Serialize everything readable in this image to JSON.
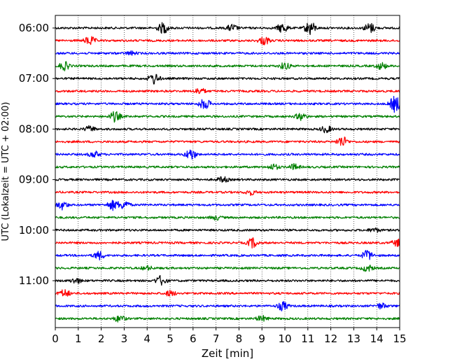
{
  "chart_data": {
    "type": "line",
    "title": "",
    "xlabel": "Zeit  [min]",
    "ylabel": "UTC (Lokalzeit = UTC + 02:00)",
    "xlim": [
      0,
      15
    ],
    "x_ticks": [
      "0",
      "1",
      "2",
      "3",
      "4",
      "5",
      "6",
      "7",
      "8",
      "9",
      "10",
      "11",
      "12",
      "13",
      "14",
      "15"
    ],
    "y_ticks": [
      "06:00",
      "07:00",
      "08:00",
      "09:00",
      "10:00",
      "11:00"
    ],
    "grid": "vertical dotted at every minute",
    "legend": "none",
    "trace_interval_minutes": 15,
    "trace_colors": [
      "#000000",
      "#ff0000",
      "#0000ff",
      "#008000"
    ],
    "traces": [
      {
        "start": "06:00",
        "color": "#000000",
        "bursts": [
          {
            "t": 4.7,
            "a": 1.6
          },
          {
            "t": 7.7,
            "a": 1.0
          },
          {
            "t": 9.9,
            "a": 1.4
          },
          {
            "t": 11.1,
            "a": 2.0
          },
          {
            "t": 13.7,
            "a": 1.5
          }
        ]
      },
      {
        "start": "06:15",
        "color": "#ff0000",
        "bursts": [
          {
            "t": 1.5,
            "a": 1.3
          },
          {
            "t": 9.1,
            "a": 1.2
          }
        ]
      },
      {
        "start": "06:30",
        "color": "#0000ff",
        "bursts": [
          {
            "t": 3.3,
            "a": 0.5
          }
        ]
      },
      {
        "start": "06:45",
        "color": "#008000",
        "bursts": [
          {
            "t": 0.4,
            "a": 1.2
          },
          {
            "t": 10.0,
            "a": 1.0
          },
          {
            "t": 14.2,
            "a": 1.0
          }
        ]
      },
      {
        "start": "07:00",
        "color": "#000000",
        "bursts": [
          {
            "t": 4.3,
            "a": 1.6
          }
        ]
      },
      {
        "start": "07:15",
        "color": "#ff0000",
        "bursts": [
          {
            "t": 6.3,
            "a": 0.9
          }
        ]
      },
      {
        "start": "07:30",
        "color": "#0000ff",
        "bursts": [
          {
            "t": 6.5,
            "a": 1.6
          },
          {
            "t": 14.8,
            "a": 2.4
          }
        ]
      },
      {
        "start": "07:45",
        "color": "#008000",
        "bursts": [
          {
            "t": 2.6,
            "a": 1.5
          },
          {
            "t": 10.7,
            "a": 1.0
          }
        ]
      },
      {
        "start": "08:00",
        "color": "#000000",
        "bursts": [
          {
            "t": 1.5,
            "a": 0.8
          },
          {
            "t": 11.8,
            "a": 1.0
          }
        ]
      },
      {
        "start": "08:15",
        "color": "#ff0000",
        "bursts": [
          {
            "t": 12.5,
            "a": 1.6
          }
        ]
      },
      {
        "start": "08:30",
        "color": "#0000ff",
        "bursts": [
          {
            "t": 1.7,
            "a": 0.9
          },
          {
            "t": 5.9,
            "a": 1.6
          }
        ]
      },
      {
        "start": "08:45",
        "color": "#008000",
        "bursts": [
          {
            "t": 9.5,
            "a": 0.8
          },
          {
            "t": 10.4,
            "a": 0.8
          }
        ]
      },
      {
        "start": "09:00",
        "color": "#000000",
        "bursts": [
          {
            "t": 7.3,
            "a": 0.8
          }
        ]
      },
      {
        "start": "09:15",
        "color": "#ff0000",
        "bursts": [
          {
            "t": 8.5,
            "a": 0.7
          }
        ]
      },
      {
        "start": "09:30",
        "color": "#0000ff",
        "bursts": [
          {
            "t": 0.3,
            "a": 1.2
          },
          {
            "t": 2.5,
            "a": 1.4
          },
          {
            "t": 3.0,
            "a": 1.3
          }
        ]
      },
      {
        "start": "09:45",
        "color": "#008000",
        "bursts": [
          {
            "t": 7.0,
            "a": 0.6
          }
        ]
      },
      {
        "start": "10:00",
        "color": "#000000",
        "bursts": [
          {
            "t": 13.9,
            "a": 0.6
          }
        ]
      },
      {
        "start": "10:15",
        "color": "#ff0000",
        "bursts": [
          {
            "t": 8.6,
            "a": 1.4
          },
          {
            "t": 14.9,
            "a": 1.0
          }
        ]
      },
      {
        "start": "10:30",
        "color": "#0000ff",
        "bursts": [
          {
            "t": 1.9,
            "a": 1.2
          },
          {
            "t": 13.6,
            "a": 1.5
          }
        ]
      },
      {
        "start": "10:45",
        "color": "#008000",
        "bursts": [
          {
            "t": 4.0,
            "a": 0.6
          },
          {
            "t": 13.6,
            "a": 1.0
          }
        ]
      },
      {
        "start": "11:00",
        "color": "#000000",
        "bursts": [
          {
            "t": 0.9,
            "a": 0.8
          },
          {
            "t": 4.6,
            "a": 1.4
          }
        ]
      },
      {
        "start": "11:15",
        "color": "#ff0000",
        "bursts": [
          {
            "t": 0.4,
            "a": 1.1
          },
          {
            "t": 5.0,
            "a": 0.8
          }
        ]
      },
      {
        "start": "11:30",
        "color": "#0000ff",
        "bursts": [
          {
            "t": 9.9,
            "a": 1.3
          },
          {
            "t": 14.2,
            "a": 0.8
          }
        ]
      },
      {
        "start": "11:45",
        "color": "#008000",
        "bursts": [
          {
            "t": 2.8,
            "a": 1.0
          },
          {
            "t": 9.0,
            "a": 0.8
          }
        ]
      }
    ]
  }
}
